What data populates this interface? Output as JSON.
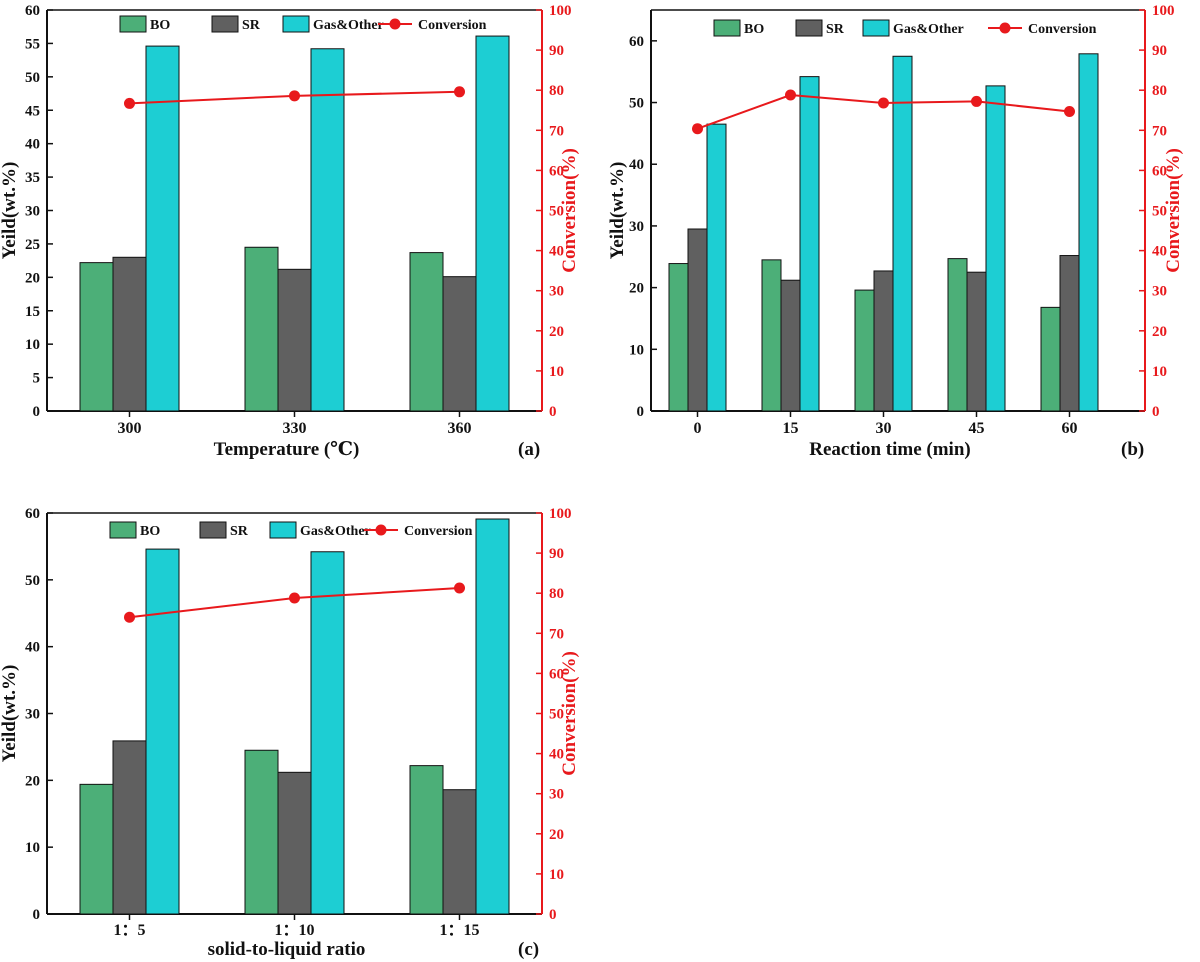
{
  "chart_data": [
    {
      "type": "bar",
      "panel": "(a)",
      "categories": [
        "300",
        "330",
        "360"
      ],
      "xlabel": "Temperature (℃)",
      "ylabel": "Yeild(wt.%)",
      "y2label": "Conversion(%)",
      "ylim": [
        0,
        60
      ],
      "yticks": [
        0,
        5,
        10,
        15,
        20,
        25,
        30,
        35,
        40,
        45,
        50,
        55,
        60
      ],
      "y2lim": [
        0,
        100
      ],
      "y2ticks": [
        0,
        10,
        20,
        30,
        40,
        50,
        60,
        70,
        80,
        90,
        100
      ],
      "series": [
        {
          "name": "BO",
          "color": "#4caf78",
          "values": [
            22.2,
            24.5,
            23.7
          ]
        },
        {
          "name": "SR",
          "color": "#606060",
          "values": [
            23.0,
            21.2,
            20.1
          ]
        },
        {
          "name": "Gas&Other",
          "color": "#1dced3",
          "values": [
            54.6,
            54.2,
            56.1
          ]
        }
      ],
      "line": {
        "name": "Conversion",
        "color": "#e8191c",
        "values": [
          76.7,
          78.6,
          79.6
        ]
      },
      "legend": [
        "BO",
        "SR",
        "Gas&Other",
        "Conversion"
      ],
      "legend_position": "top"
    },
    {
      "type": "bar",
      "panel": "(b)",
      "categories": [
        "0",
        "15",
        "30",
        "45",
        "60"
      ],
      "xlabel": "Reaction time (min)",
      "ylabel": "Yeild(wt.%)",
      "y2label": "Conversion(%)",
      "ylim": [
        0,
        65
      ],
      "yticks": [
        0,
        10,
        20,
        30,
        40,
        50,
        60
      ],
      "y2lim": [
        0,
        100
      ],
      "y2ticks": [
        0,
        10,
        20,
        30,
        40,
        50,
        60,
        70,
        80,
        90,
        100
      ],
      "series": [
        {
          "name": "BO",
          "color": "#4caf78",
          "values": [
            23.9,
            24.5,
            19.6,
            24.7,
            16.8
          ]
        },
        {
          "name": "SR",
          "color": "#606060",
          "values": [
            29.5,
            21.2,
            22.7,
            22.5,
            25.2
          ]
        },
        {
          "name": "Gas&Other",
          "color": "#1dced3",
          "values": [
            46.5,
            54.2,
            57.5,
            52.7,
            57.9
          ]
        }
      ],
      "line": {
        "name": "Conversion",
        "color": "#e8191c",
        "values": [
          70.4,
          78.8,
          76.8,
          77.2,
          74.7
        ]
      },
      "legend": [
        "BO",
        "SR",
        "Gas&Other",
        "Conversion"
      ],
      "legend_position": "top"
    },
    {
      "type": "bar",
      "panel": "(c)",
      "categories": [
        "1：5",
        "1：10",
        "1：15"
      ],
      "xlabel": "solid-to-liquid ratio",
      "ylabel": "Yeild(wt.%)",
      "y2label": "Conversion(%)",
      "ylim": [
        0,
        60
      ],
      "yticks": [
        0,
        10,
        20,
        30,
        40,
        50,
        60
      ],
      "y2lim": [
        0,
        100
      ],
      "y2ticks": [
        0,
        10,
        20,
        30,
        40,
        50,
        60,
        70,
        80,
        90,
        100
      ],
      "series": [
        {
          "name": "BO",
          "color": "#4caf78",
          "values": [
            19.4,
            24.5,
            22.2
          ]
        },
        {
          "name": "SR",
          "color": "#606060",
          "values": [
            25.9,
            21.2,
            18.6
          ]
        },
        {
          "name": "Gas&Other",
          "color": "#1dced3",
          "values": [
            54.6,
            54.2,
            59.1
          ]
        }
      ],
      "line": {
        "name": "Conversion",
        "color": "#e8191c",
        "values": [
          74.0,
          78.8,
          81.3
        ]
      },
      "legend": [
        "BO",
        "SR",
        "Gas&Other",
        "Conversion"
      ],
      "legend_position": "top"
    }
  ]
}
